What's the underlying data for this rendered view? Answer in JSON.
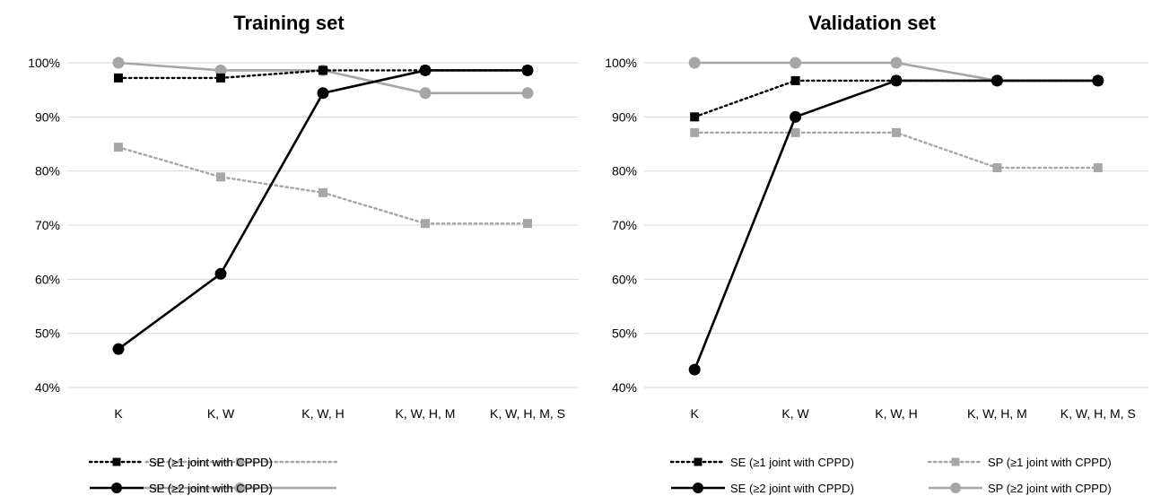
{
  "chart_data": [
    {
      "type": "line",
      "title": "Training set",
      "categories": [
        "K",
        "K, W",
        "K, W, H",
        "K, W, H, M",
        "K, W, H, M, S"
      ],
      "ylim": [
        40,
        100
      ],
      "yticks": [
        "40%",
        "50%",
        "60%",
        "70%",
        "80%",
        "90%",
        "100%"
      ],
      "grid": true,
      "legend_position": "bottom",
      "series": [
        {
          "name": "SE (≥1 joint with CPPD)",
          "values": [
            97.2,
            97.2,
            98.6,
            98.6,
            98.6
          ],
          "color": "#000000",
          "dash": "dotted",
          "marker": "square"
        },
        {
          "name": "SP (≥1 joint with CPPD)",
          "values": [
            84.4,
            78.9,
            76.0,
            70.3,
            70.3
          ],
          "color": "#a6a6a6",
          "dash": "dotted",
          "marker": "square"
        },
        {
          "name": "SE (≥2 joint with CPPD)",
          "values": [
            47.1,
            61.0,
            94.4,
            98.6,
            98.6
          ],
          "color": "#000000",
          "dash": "solid",
          "marker": "circle"
        },
        {
          "name": "SP (≥2 joint with CPPD)",
          "values": [
            100.0,
            98.6,
            98.6,
            94.4,
            94.4
          ],
          "color": "#a6a6a6",
          "dash": "solid",
          "marker": "circle"
        }
      ]
    },
    {
      "type": "line",
      "title": "Validation set",
      "categories": [
        "K",
        "K, W",
        "K, W, H",
        "K, W, H, M",
        "K, W, H, M, S"
      ],
      "ylim": [
        40,
        100
      ],
      "yticks": [
        "40%",
        "50%",
        "60%",
        "70%",
        "80%",
        "90%",
        "100%"
      ],
      "grid": true,
      "legend_position": "bottom",
      "series": [
        {
          "name": "SE (≥1 joint with CPPD)",
          "values": [
            90.0,
            96.7,
            96.7,
            96.7,
            96.7
          ],
          "color": "#000000",
          "dash": "dotted",
          "marker": "square"
        },
        {
          "name": "SP (≥1 joint with CPPD)",
          "values": [
            87.1,
            87.1,
            87.1,
            80.6,
            80.6
          ],
          "color": "#a6a6a6",
          "dash": "dotted",
          "marker": "square"
        },
        {
          "name": "SE (≥2 joint with CPPD)",
          "values": [
            43.3,
            90.0,
            96.7,
            96.7,
            96.7
          ],
          "color": "#000000",
          "dash": "solid",
          "marker": "circle"
        },
        {
          "name": "SP (≥2 joint with CPPD)",
          "values": [
            100.0,
            100.0,
            100.0,
            96.7,
            96.7
          ],
          "color": "#a6a6a6",
          "dash": "solid",
          "marker": "circle"
        }
      ]
    }
  ]
}
